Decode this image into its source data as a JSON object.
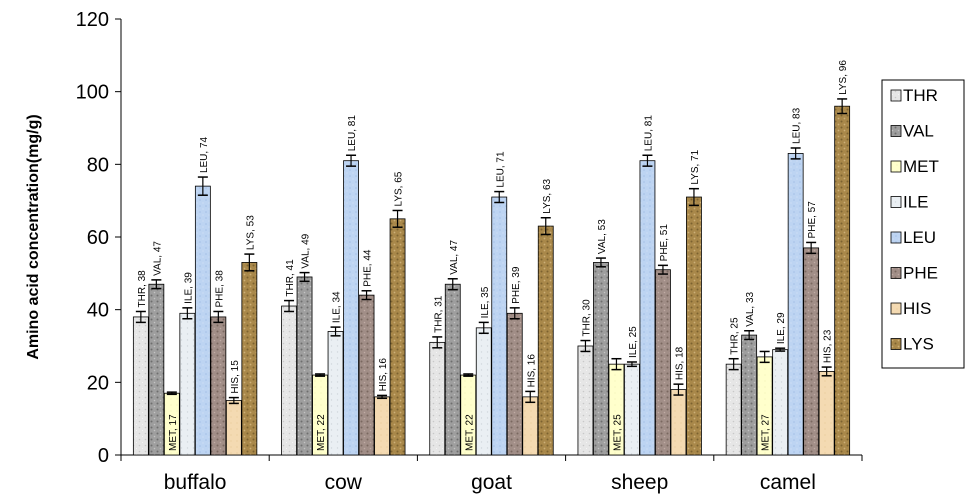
{
  "chart_data": {
    "type": "bar",
    "title": "",
    "xlabel": "",
    "ylabel": "Amino acid concentration(mg/g)",
    "ylim": [
      0,
      120
    ],
    "yticks": [
      0,
      20,
      40,
      60,
      80,
      100,
      120
    ],
    "grid": false,
    "legend_position": "right",
    "categories": [
      "buffalo",
      "cow",
      "goat",
      "sheep",
      "camel"
    ],
    "series": [
      {
        "name": "THR",
        "color": "#e4e4e4",
        "values": [
          38,
          41,
          31,
          30,
          25
        ],
        "errors": [
          1.5,
          1.5,
          1.5,
          1.5,
          1.5
        ]
      },
      {
        "name": "VAL",
        "color": "#a0a0a0",
        "values": [
          47,
          49,
          47,
          53,
          33
        ],
        "errors": [
          1.2,
          1.2,
          1.5,
          1.2,
          1.2
        ]
      },
      {
        "name": "MET",
        "color": "#ffffcc",
        "values": [
          17,
          22,
          22,
          25,
          27
        ],
        "errors": [
          0.3,
          0.3,
          0.3,
          1.5,
          1.5
        ]
      },
      {
        "name": "ILE",
        "color": "#e9eef2",
        "values": [
          39,
          34,
          35,
          25,
          29
        ],
        "errors": [
          1.5,
          1.2,
          1.5,
          0.6,
          0.4
        ]
      },
      {
        "name": "LEU",
        "color": "#bcd3f2",
        "values": [
          74,
          81,
          71,
          81,
          83
        ],
        "errors": [
          2.5,
          1.5,
          1.5,
          1.5,
          1.5
        ]
      },
      {
        "name": "PHE",
        "color": "#a08d86",
        "values": [
          38,
          44,
          39,
          51,
          57
        ],
        "errors": [
          1.5,
          1.2,
          1.5,
          1.2,
          1.5
        ]
      },
      {
        "name": "HIS",
        "color": "#f3d9b1",
        "values": [
          15,
          16,
          16,
          18,
          23
        ],
        "errors": [
          0.8,
          0.4,
          1.5,
          1.5,
          1.2
        ]
      },
      {
        "name": "LYS",
        "color": "#a8874a",
        "values": [
          53,
          65,
          63,
          71,
          96
        ],
        "errors": [
          2.3,
          2.3,
          2.3,
          2.3,
          2.0
        ]
      }
    ],
    "data_labels": [
      [
        "THR, 38",
        "VAL, 47",
        "MET, 17",
        "ILE, 39",
        "LEU, 74",
        "PHE, 38",
        "HIS, 15",
        "LYS, 53"
      ],
      [
        "THR, 41",
        "VAL, 49",
        "MET, 22",
        "ILE, 34",
        "LEU, 81",
        "PHE, 44",
        "HIS, 16",
        "LYS, 65"
      ],
      [
        "THR, 31",
        "VAL, 47",
        "MET, 22",
        "ILE, 35",
        "LEU, 71",
        "PHE, 39",
        "HIS, 16",
        "LYS, 63"
      ],
      [
        "THR, 30",
        "VAL, 53",
        "MET, 25",
        "ILE, 25",
        "LEU, 81",
        "PHE, 51",
        "HIS, 18",
        "LYS, 71"
      ],
      [
        "THR, 25",
        "VAL, 33",
        "MET, 27",
        "ILE, 29",
        "LEU, 83",
        "PHE, 57",
        "HIS, 23",
        "LYS, 96"
      ]
    ]
  }
}
